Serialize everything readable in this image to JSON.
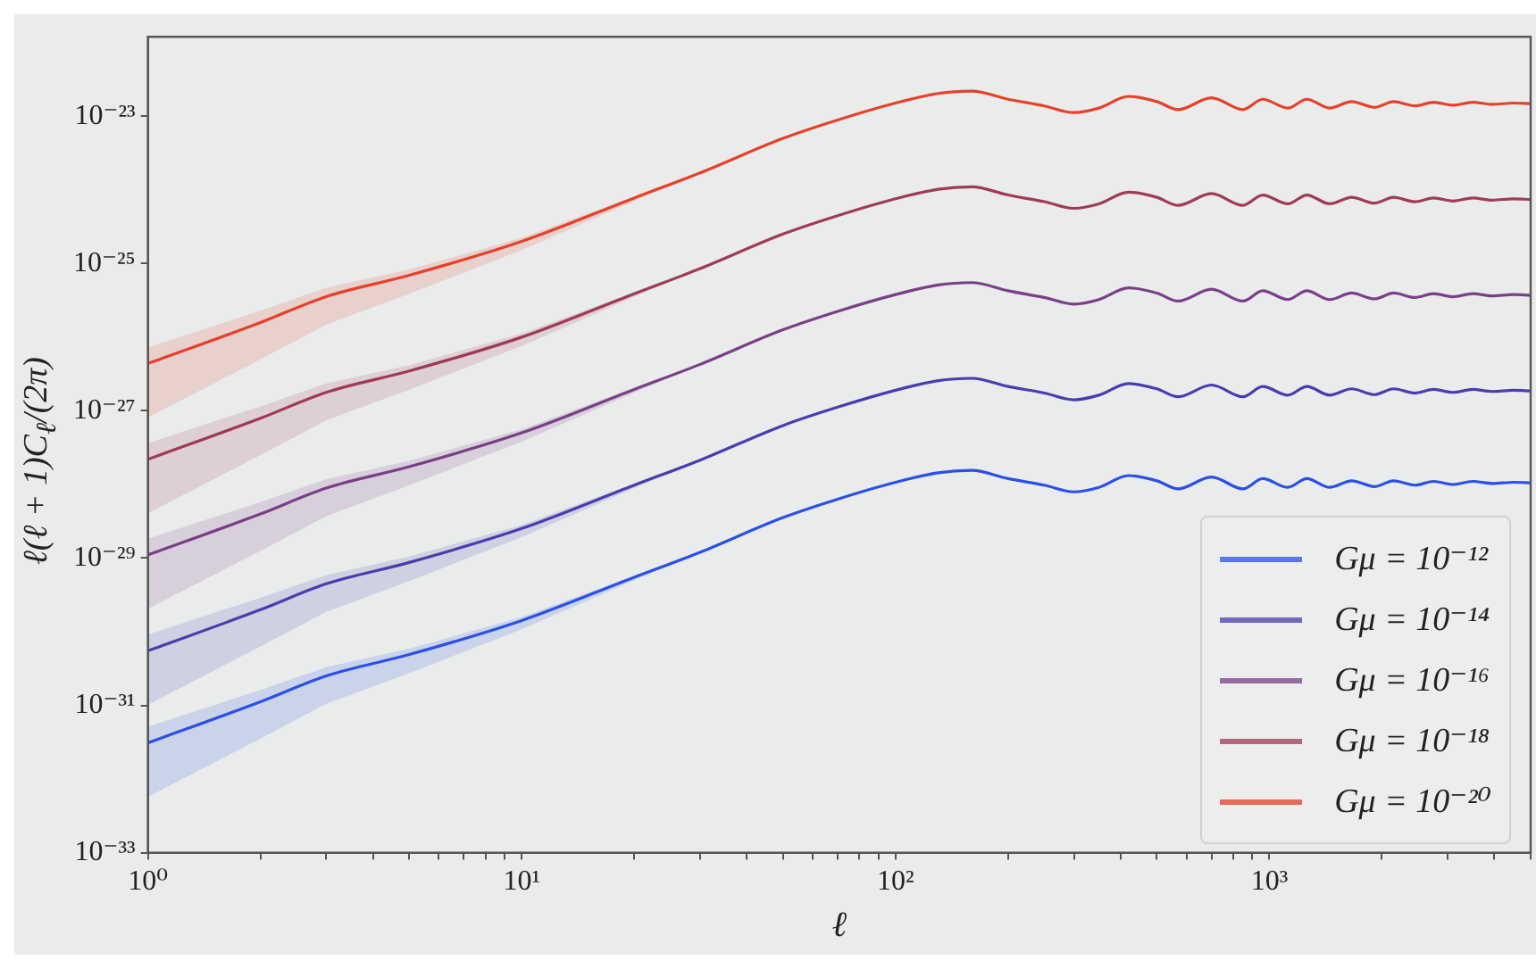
{
  "chart_data": {
    "type": "line",
    "xlabel": "ℓ",
    "ylabel": "ℓ(ℓ + 1)C$_{ℓ}$/(2π)",
    "log": "xy",
    "grid": false,
    "legend": "bottom right",
    "marker": "none",
    "line_style": "solid",
    "xlim": [
      1,
      5000
    ],
    "ylim": [
      1e-33,
      1.2e-22
    ],
    "xticks": [
      {
        "value": 1,
        "label": "10⁰"
      },
      {
        "value": 2,
        "label": null
      },
      {
        "value": 3,
        "label": null
      },
      {
        "value": 4,
        "label": null
      },
      {
        "value": 5,
        "label": null
      },
      {
        "value": 6,
        "label": null
      },
      {
        "value": 7,
        "label": null
      },
      {
        "value": 8,
        "label": null
      },
      {
        "value": 9,
        "label": null
      },
      {
        "value": 10,
        "label": "10¹"
      },
      {
        "value": 20,
        "label": null
      },
      {
        "value": 30,
        "label": null
      },
      {
        "value": 40,
        "label": null
      },
      {
        "value": 50,
        "label": null
      },
      {
        "value": 60,
        "label": null
      },
      {
        "value": 70,
        "label": null
      },
      {
        "value": 80,
        "label": null
      },
      {
        "value": 90,
        "label": null
      },
      {
        "value": 100,
        "label": "10²"
      },
      {
        "value": 200,
        "label": null
      },
      {
        "value": 300,
        "label": null
      },
      {
        "value": 400,
        "label": null
      },
      {
        "value": 500,
        "label": null
      },
      {
        "value": 600,
        "label": null
      },
      {
        "value": 700,
        "label": null
      },
      {
        "value": 800,
        "label": null
      },
      {
        "value": 900,
        "label": null
      },
      {
        "value": 1000,
        "label": "10³"
      },
      {
        "value": 2000,
        "label": null
      },
      {
        "value": 3000,
        "label": null
      },
      {
        "value": 4000,
        "label": null
      },
      {
        "value": 5000,
        "label": null
      }
    ],
    "yticks": [
      {
        "value": 1e-33,
        "label": "10⁻³³"
      },
      {
        "value": 1e-31,
        "label": "10⁻³¹"
      },
      {
        "value": 1e-29,
        "label": "10⁻²⁹"
      },
      {
        "value": 1e-27,
        "label": "10⁻²⁷"
      },
      {
        "value": 1e-25,
        "label": "10⁻²⁵"
      },
      {
        "value": 1e-23,
        "label": "10⁻²³"
      }
    ],
    "x": [
      1,
      2,
      3,
      5,
      10,
      20,
      30,
      50,
      70,
      100,
      130,
      160,
      200,
      250,
      300,
      350,
      420,
      500,
      570,
      700,
      850,
      960,
      1120,
      1260,
      1450,
      1660,
      1910,
      2150,
      2450,
      2750,
      3100,
      3500,
      3950,
      4500,
      5000
    ],
    "series": [
      {
        "name": "Gμ = 10⁻¹²",
        "color": "#2a50e6",
        "values": [
          3.09e-32,
          1.12e-31,
          2.51e-31,
          4.9e-31,
          1.42e-30,
          5.49e-30,
          1.2e-29,
          3.55e-29,
          6.31e-29,
          1.07e-28,
          1.44e-28,
          1.55e-28,
          1.2e-28,
          9.77e-29,
          7.93e-29,
          9.13e-29,
          1.32e-28,
          1.12e-28,
          8.71e-29,
          1.26e-28,
          8.71e-29,
          1.2e-28,
          9.13e-29,
          1.2e-28,
          9.13e-29,
          1.12e-28,
          9.35e-29,
          1.12e-28,
          9.77e-29,
          1.1e-28,
          9.98e-29,
          1.1e-28,
          1.03e-28,
          1.07e-28,
          1.05e-28
        ],
        "upper": [
          5.13e-32,
          1.62e-31,
          3.31e-31,
          5.88e-31,
          1.59e-30,
          5.76e-30,
          1.2e-29,
          null,
          null,
          null,
          null,
          null,
          null,
          null,
          null,
          null,
          null,
          null,
          null,
          null,
          null,
          null,
          null,
          null,
          null,
          null,
          null,
          null,
          null,
          null,
          null,
          null,
          null,
          null,
          null
        ],
        "lower": [
          5.75e-33,
          3.54e-32,
          1.05e-31,
          2.74e-31,
          1.08e-30,
          5e-30,
          1.2e-29,
          null,
          null,
          null,
          null,
          null,
          null,
          null,
          null,
          null,
          null,
          null,
          null,
          null,
          null,
          null,
          null,
          null,
          null,
          null,
          null,
          null,
          null,
          null,
          null,
          null,
          null,
          null,
          null
        ]
      },
      {
        "name": "Gμ = 10⁻¹⁴",
        "color": "#4a3cb0",
        "values": [
          5.51e-31,
          1.99e-30,
          4.47e-30,
          8.72e-30,
          2.52e-29,
          9.78e-29,
          2.14e-28,
          6.31e-28,
          1.12e-27,
          1.9e-27,
          2.57e-27,
          2.76e-27,
          2.14e-27,
          1.74e-27,
          1.41e-27,
          1.63e-27,
          2.34e-27,
          1.99e-27,
          1.55e-27,
          2.24e-27,
          1.55e-27,
          2.14e-27,
          1.63e-27,
          2.14e-27,
          1.63e-27,
          1.99e-27,
          1.66e-27,
          1.99e-27,
          1.74e-27,
          1.95e-27,
          1.78e-27,
          1.95e-27,
          1.83e-27,
          1.9e-27,
          1.86e-27
        ],
        "upper": [
          9.15e-31,
          2.89e-30,
          5.9e-30,
          1.05e-29,
          2.82e-29,
          1.03e-28,
          2.14e-28,
          null,
          null,
          null,
          null,
          null,
          null,
          null,
          null,
          null,
          null,
          null,
          null,
          null,
          null,
          null,
          null,
          null,
          null,
          null,
          null,
          null,
          null,
          null,
          null,
          null,
          null,
          null,
          null
        ],
        "lower": [
          1.02e-31,
          6.29e-31,
          1.86e-30,
          4.88e-30,
          1.92e-29,
          8.9e-29,
          2.14e-28,
          null,
          null,
          null,
          null,
          null,
          null,
          null,
          null,
          null,
          null,
          null,
          null,
          null,
          null,
          null,
          null,
          null,
          null,
          null,
          null,
          null,
          null,
          null,
          null,
          null,
          null,
          null,
          null
        ]
      },
      {
        "name": "Gμ = 10⁻¹⁶",
        "color": "#7a3f88",
        "values": [
          1.1e-29,
          3.97e-29,
          8.91e-29,
          1.74e-28,
          5.02e-28,
          1.95e-27,
          4.27e-27,
          1.26e-26,
          2.24e-26,
          3.79e-26,
          5.12e-26,
          5.5e-26,
          4.27e-26,
          3.46e-26,
          2.81e-26,
          3.24e-26,
          4.67e-26,
          3.97e-26,
          3.09e-26,
          4.47e-26,
          3.09e-26,
          4.27e-26,
          3.24e-26,
          4.27e-26,
          3.24e-26,
          3.97e-26,
          3.31e-26,
          3.97e-26,
          3.46e-26,
          3.89e-26,
          3.54e-26,
          3.89e-26,
          3.64e-26,
          3.79e-26,
          3.71e-26
        ],
        "upper": [
          1.83e-29,
          5.76e-29,
          1.18e-28,
          2.09e-28,
          5.62e-28,
          2.05e-27,
          4.27e-27,
          null,
          null,
          null,
          null,
          null,
          null,
          null,
          null,
          null,
          null,
          null,
          null,
          null,
          null,
          null,
          null,
          null,
          null,
          null,
          null,
          null,
          null,
          null,
          null,
          null,
          null,
          null,
          null
        ],
        "lower": [
          2.05e-30,
          1.25e-29,
          3.72e-29,
          9.74e-29,
          3.82e-28,
          1.77e-27,
          4.27e-27,
          null,
          null,
          null,
          null,
          null,
          null,
          null,
          null,
          null,
          null,
          null,
          null,
          null,
          null,
          null,
          null,
          null,
          null,
          null,
          null,
          null,
          null,
          null,
          null,
          null,
          null,
          null,
          null
        ]
      },
      {
        "name": "Gμ = 10⁻¹⁸",
        "color": "#a03a55",
        "values": [
          2.19e-28,
          7.92e-28,
          1.78e-27,
          3.47e-27,
          1e-26,
          3.89e-26,
          8.52e-26,
          2.51e-25,
          4.46e-25,
          7.57e-25,
          1.02e-24,
          1.1e-24,
          8.52e-25,
          6.91e-25,
          5.61e-25,
          6.46e-25,
          9.32e-25,
          7.92e-25,
          6.16e-25,
          8.92e-25,
          6.16e-25,
          8.52e-25,
          6.46e-25,
          8.52e-25,
          6.46e-25,
          7.92e-25,
          6.61e-25,
          7.92e-25,
          6.91e-25,
          7.77e-25,
          7.06e-25,
          7.77e-25,
          7.26e-25,
          7.57e-25,
          7.41e-25
        ],
        "upper": [
          3.64e-28,
          1.15e-27,
          2.35e-27,
          4.16e-27,
          1.12e-26,
          4.08e-26,
          8.52e-26,
          null,
          null,
          null,
          null,
          null,
          null,
          null,
          null,
          null,
          null,
          null,
          null,
          null,
          null,
          null,
          null,
          null,
          null,
          null,
          null,
          null,
          null,
          null,
          null,
          null,
          null,
          null,
          null
        ],
        "lower": [
          4.07e-29,
          2.5e-28,
          7.42e-28,
          1.94e-27,
          7.6e-27,
          3.54e-26,
          8.52e-26,
          null,
          null,
          null,
          null,
          null,
          null,
          null,
          null,
          null,
          null,
          null,
          null,
          null,
          null,
          null,
          null,
          null,
          null,
          null,
          null,
          null,
          null,
          null,
          null,
          null,
          null,
          null,
          null
        ]
      },
      {
        "name": "Gμ = 10⁻²⁰",
        "color": "#e8402a",
        "values": [
          4.37e-27,
          1.58e-26,
          3.55e-26,
          6.92e-26,
          2e-25,
          7.76e-25,
          1.7e-24,
          5.01e-24,
          8.91e-24,
          1.51e-23,
          2.04e-23,
          2.19e-23,
          1.7e-23,
          1.38e-23,
          1.12e-23,
          1.29e-23,
          1.86e-23,
          1.58e-23,
          1.23e-23,
          1.78e-23,
          1.23e-23,
          1.7e-23,
          1.29e-23,
          1.7e-23,
          1.29e-23,
          1.58e-23,
          1.32e-23,
          1.58e-23,
          1.38e-23,
          1.55e-23,
          1.41e-23,
          1.55e-23,
          1.45e-23,
          1.51e-23,
          1.48e-23
        ],
        "upper": [
          7.25e-27,
          2.29e-26,
          4.69e-26,
          8.3e-26,
          2.24e-25,
          8.15e-25,
          1.7e-24,
          null,
          null,
          null,
          null,
          null,
          null,
          null,
          null,
          null,
          null,
          null,
          null,
          null,
          null,
          null,
          null,
          null,
          null,
          null,
          null,
          null,
          null,
          null,
          null,
          null,
          null,
          null,
          null
        ],
        "lower": [
          8.13e-28,
          4.99e-27,
          1.48e-26,
          3.88e-26,
          1.52e-25,
          7.06e-25,
          1.7e-24,
          null,
          null,
          null,
          null,
          null,
          null,
          null,
          null,
          null,
          null,
          null,
          null,
          null,
          null,
          null,
          null,
          null,
          null,
          null,
          null,
          null,
          null,
          null,
          null,
          null,
          null,
          null,
          null
        ]
      }
    ]
  }
}
